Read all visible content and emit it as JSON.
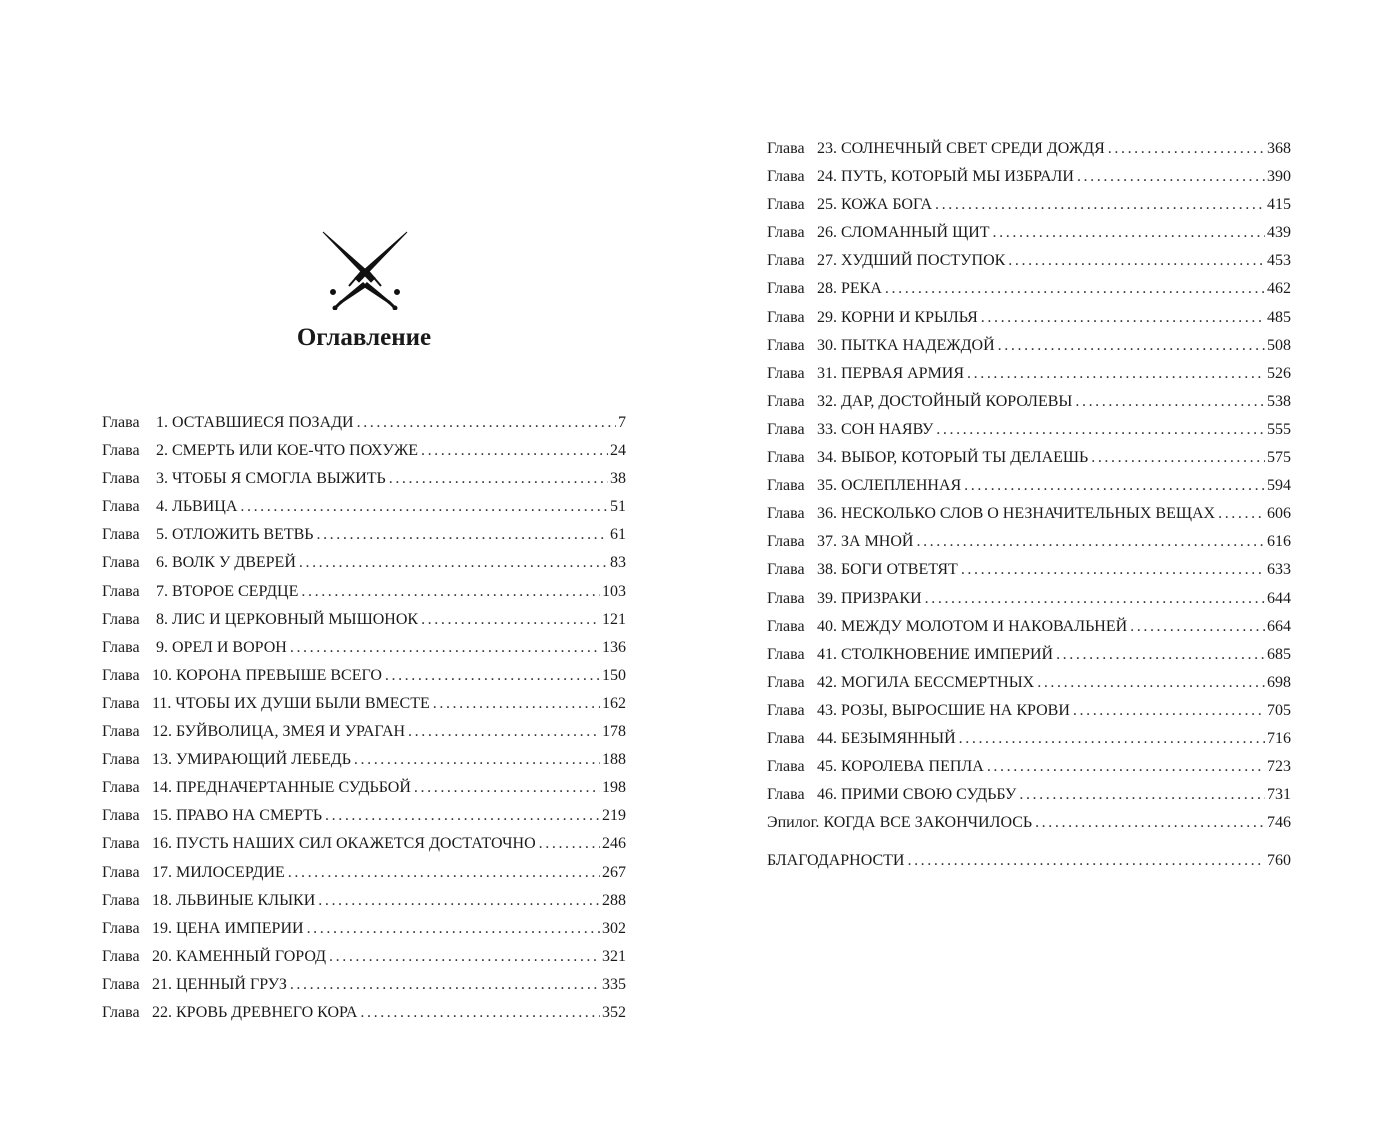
{
  "title": "Оглавление",
  "ornament_icon": "crossed-daggers-icon",
  "left_entries": [
    {
      "prefix": "Глава",
      "num": "1.",
      "title": "ОСТАВШИЕСЯ ПОЗАДИ",
      "page": "7"
    },
    {
      "prefix": "Глава",
      "num": "2.",
      "title": "СМЕРТЬ ИЛИ КОЕ-ЧТО ПОХУЖЕ",
      "page": "24"
    },
    {
      "prefix": "Глава",
      "num": "3.",
      "title": "ЧТОБЫ Я СМОГЛА ВЫЖИТЬ",
      "page": "38"
    },
    {
      "prefix": "Глава",
      "num": "4.",
      "title": "ЛЬВИЦА",
      "page": "51"
    },
    {
      "prefix": "Глава",
      "num": "5.",
      "title": "ОТЛОЖИТЬ ВЕТВЬ",
      "page": "61"
    },
    {
      "prefix": "Глава",
      "num": "6.",
      "title": "ВОЛК У ДВЕРЕЙ",
      "page": "83"
    },
    {
      "prefix": "Глава",
      "num": "7.",
      "title": "ВТОРОЕ СЕРДЦЕ",
      "page": "103"
    },
    {
      "prefix": "Глава",
      "num": "8.",
      "title": "ЛИС И ЦЕРКОВНЫЙ МЫШОНОК",
      "page": "121"
    },
    {
      "prefix": "Глава",
      "num": "9.",
      "title": "ОРЕЛ И ВОРОН",
      "page": "136"
    },
    {
      "prefix": "Глава",
      "num": "10.",
      "title": "КОРОНА ПРЕВЫШЕ ВСЕГО",
      "page": "150"
    },
    {
      "prefix": "Глава",
      "num": "11.",
      "title": "ЧТОБЫ ИХ ДУШИ БЫЛИ ВМЕСТЕ",
      "page": "162"
    },
    {
      "prefix": "Глава",
      "num": "12.",
      "title": "БУЙВОЛИЦА, ЗМЕЯ И УРАГАН",
      "page": "178"
    },
    {
      "prefix": "Глава",
      "num": "13.",
      "title": "УМИРАЮЩИЙ ЛЕБЕДЬ",
      "page": "188"
    },
    {
      "prefix": "Глава",
      "num": "14.",
      "title": "ПРЕДНАЧЕРТАННЫЕ СУДЬБОЙ",
      "page": "198"
    },
    {
      "prefix": "Глава",
      "num": "15.",
      "title": "ПРАВО НА СМЕРТЬ",
      "page": "219"
    },
    {
      "prefix": "Глава",
      "num": "16.",
      "title": "ПУСТЬ НАШИХ СИЛ ОКАЖЕТСЯ ДОСТАТОЧНО",
      "page": "246"
    },
    {
      "prefix": "Глава",
      "num": "17.",
      "title": "МИЛОСЕРДИЕ",
      "page": "267"
    },
    {
      "prefix": "Глава",
      "num": "18.",
      "title": "ЛЬВИНЫЕ КЛЫКИ",
      "page": "288"
    },
    {
      "prefix": "Глава",
      "num": "19.",
      "title": "ЦЕНА ИМПЕРИИ",
      "page": "302"
    },
    {
      "prefix": "Глава",
      "num": "20.",
      "title": "КАМЕННЫЙ ГОРОД",
      "page": "321"
    },
    {
      "prefix": "Глава",
      "num": "21.",
      "title": "ЦЕННЫЙ ГРУЗ",
      "page": "335"
    },
    {
      "prefix": "Глава",
      "num": "22.",
      "title": "КРОВЬ ДРЕВНЕГО КОРА",
      "page": "352"
    }
  ],
  "right_entries": [
    {
      "prefix": "Глава",
      "num": "23.",
      "title": "СОЛНЕЧНЫЙ СВЕТ СРЕДИ ДОЖДЯ",
      "page": "368"
    },
    {
      "prefix": "Глава",
      "num": "24.",
      "title": "ПУТЬ, КОТОРЫЙ МЫ ИЗБРАЛИ",
      "page": "390"
    },
    {
      "prefix": "Глава",
      "num": "25.",
      "title": "КОЖА БОГА",
      "page": "415"
    },
    {
      "prefix": "Глава",
      "num": "26.",
      "title": "СЛОМАННЫЙ ЩИТ",
      "page": "439"
    },
    {
      "prefix": "Глава",
      "num": "27.",
      "title": "ХУДШИЙ ПОСТУПОК",
      "page": "453"
    },
    {
      "prefix": "Глава",
      "num": "28.",
      "title": "РЕКА",
      "page": "462"
    },
    {
      "prefix": "Глава",
      "num": "29.",
      "title": "КОРНИ И КРЫЛЬЯ",
      "page": "485"
    },
    {
      "prefix": "Глава",
      "num": "30.",
      "title": "ПЫТКА НАДЕЖДОЙ",
      "page": "508"
    },
    {
      "prefix": "Глава",
      "num": "31.",
      "title": "ПЕРВАЯ АРМИЯ",
      "page": "526"
    },
    {
      "prefix": "Глава",
      "num": "32.",
      "title": "ДАР, ДОСТОЙНЫЙ КОРОЛЕВЫ",
      "page": "538"
    },
    {
      "prefix": "Глава",
      "num": "33.",
      "title": "СОН НАЯВУ",
      "page": "555"
    },
    {
      "prefix": "Глава",
      "num": "34.",
      "title": "ВЫБОР, КОТОРЫЙ ТЫ ДЕЛАЕШЬ",
      "page": "575"
    },
    {
      "prefix": "Глава",
      "num": "35.",
      "title": "ОСЛЕПЛЕННАЯ",
      "page": "594"
    },
    {
      "prefix": "Глава",
      "num": "36.",
      "title": "НЕСКОЛЬКО СЛОВ О НЕЗНАЧИТЕЛЬНЫХ ВЕЩАХ",
      "page": "606"
    },
    {
      "prefix": "Глава",
      "num": "37.",
      "title": "ЗА МНОЙ",
      "page": "616"
    },
    {
      "prefix": "Глава",
      "num": "38.",
      "title": "БОГИ ОТВЕТЯТ",
      "page": "633"
    },
    {
      "prefix": "Глава",
      "num": "39.",
      "title": "ПРИЗРАКИ",
      "page": "644"
    },
    {
      "prefix": "Глава",
      "num": "40.",
      "title": "МЕЖДУ МОЛОТОМ И НАКОВАЛЬНЕЙ",
      "page": "664"
    },
    {
      "prefix": "Глава",
      "num": "41.",
      "title": "СТОЛКНОВЕНИЕ ИМПЕРИЙ",
      "page": "685"
    },
    {
      "prefix": "Глава",
      "num": "42.",
      "title": "МОГИЛА БЕССМЕРТНЫХ",
      "page": "698"
    },
    {
      "prefix": "Глава",
      "num": "43.",
      "title": "РОЗЫ, ВЫРОСШИЕ НА КРОВИ",
      "page": "705"
    },
    {
      "prefix": "Глава",
      "num": "44.",
      "title": "БЕЗЫМЯННЫЙ",
      "page": "716"
    },
    {
      "prefix": "Глава",
      "num": "45.",
      "title": "КОРОЛЕВА ПЕПЛА",
      "page": "723"
    },
    {
      "prefix": "Глава",
      "num": "46.",
      "title": "ПРИМИ СВОЮ СУДЬБУ",
      "page": "731"
    },
    {
      "prefix": "Эпилог.",
      "num": "",
      "title": "КОГДА ВСЕ ЗАКОНЧИЛОСЬ",
      "page": "746"
    },
    {
      "prefix": "",
      "num": "",
      "title": "БЛАГОДАРНОСТИ",
      "page": "760",
      "gap": true
    }
  ]
}
